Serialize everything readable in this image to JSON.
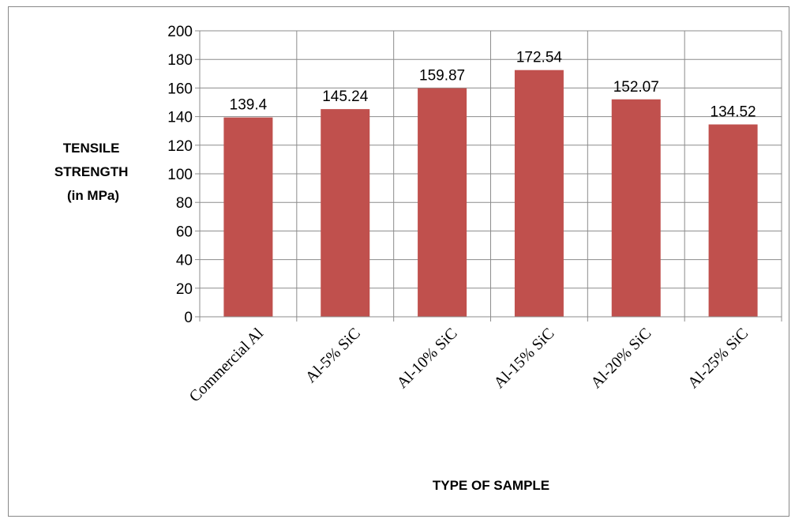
{
  "chart_data": {
    "type": "bar",
    "categories": [
      "Commercial Al",
      "Al-5% SiC",
      "Al-10% SiC",
      "Al-15% SiC",
      "Al-20% SiC",
      "Al-25% SiC"
    ],
    "values": [
      139.4,
      145.24,
      159.87,
      172.54,
      152.07,
      134.52
    ],
    "data_labels": [
      "139.4",
      "145.24",
      "159.87",
      "172.54",
      "152.07",
      "134.52"
    ],
    "xlabel": "TYPE OF SAMPLE",
    "ylabel_lines": [
      "TENSILE",
      "STRENGTH",
      "(in MPa)"
    ],
    "ylim": [
      0,
      200
    ],
    "yticks": [
      0,
      20,
      40,
      60,
      80,
      100,
      120,
      140,
      160,
      180,
      200
    ],
    "grid": true,
    "legend": "none",
    "bar_color": "#C0504D",
    "grid_color": "#8C8C8C"
  }
}
